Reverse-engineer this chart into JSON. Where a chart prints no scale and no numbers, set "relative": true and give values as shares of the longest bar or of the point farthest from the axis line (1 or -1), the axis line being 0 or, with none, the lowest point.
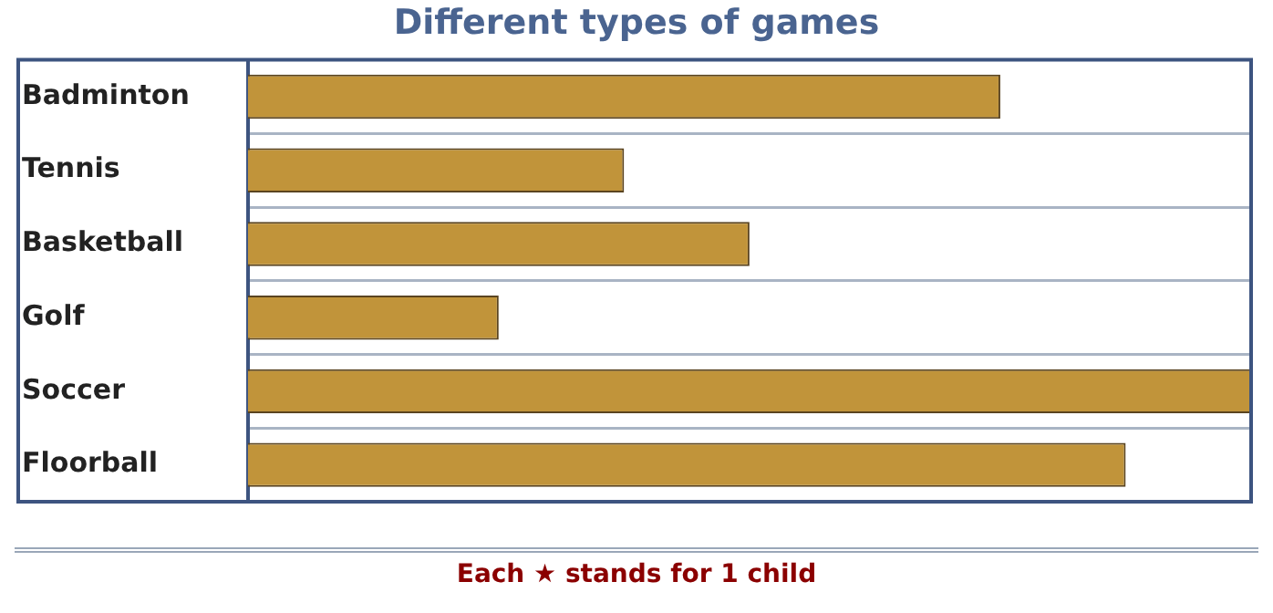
{
  "chart_data": {
    "type": "bar",
    "orientation": "horizontal",
    "relative": true,
    "title": "Different types of games",
    "categories": [
      "Badminton",
      "Tennis",
      "Basketball",
      "Golf",
      "Soccer",
      "Floorball"
    ],
    "values": [
      0.75,
      0.375,
      0.5,
      0.25,
      1,
      0.875
    ],
    "color": "#c1943a",
    "grid": "y",
    "legend": false,
    "annotations": [
      "Each ★ stands for 1 child"
    ]
  }
}
